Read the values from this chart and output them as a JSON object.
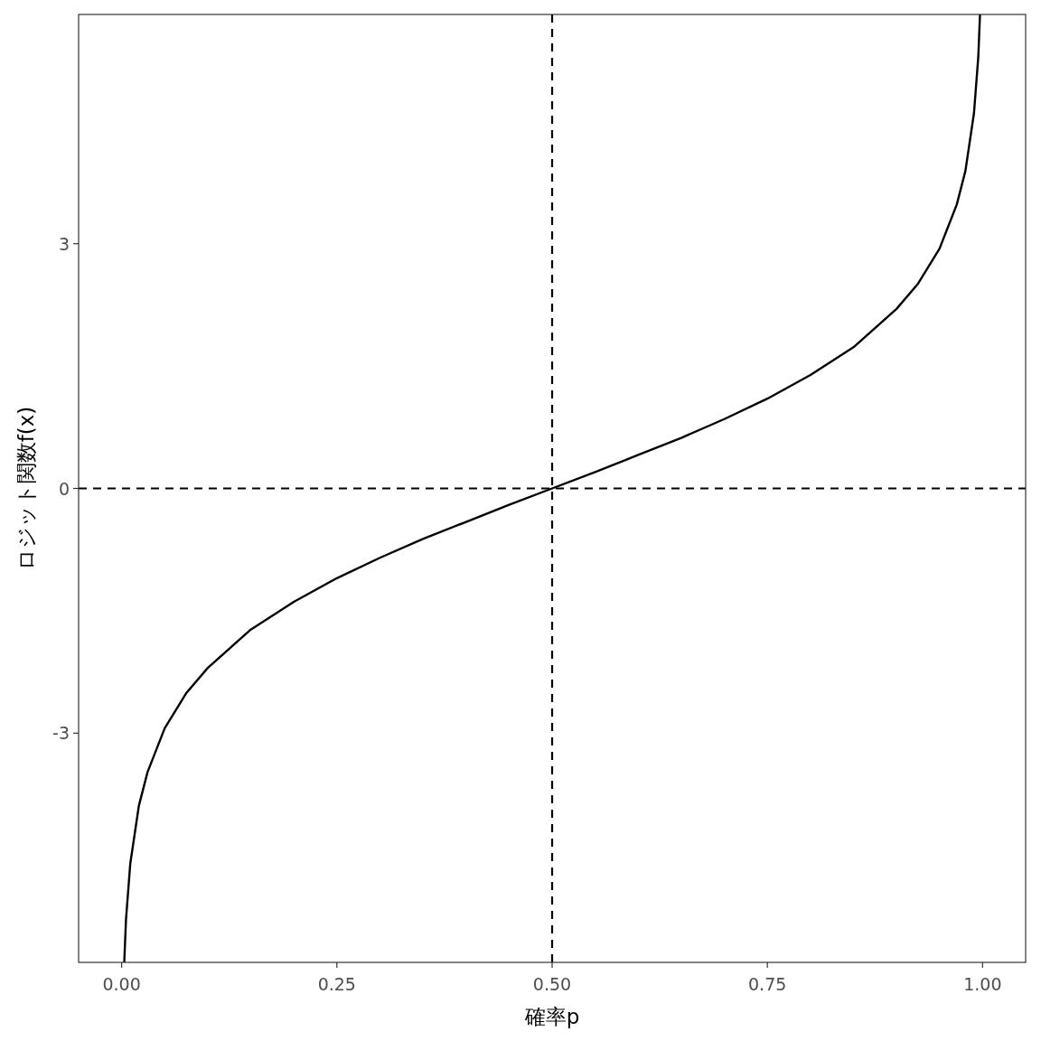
{
  "chart_data": {
    "type": "line",
    "xlabel": "確率p",
    "ylabel": "ロジット関数f(x)",
    "xlim": [
      -0.05,
      1.05
    ],
    "ylim": [
      -5.81,
      5.81
    ],
    "xticks": [
      {
        "value": 0,
        "label": "0.00"
      },
      {
        "value": 0.25,
        "label": "0.25"
      },
      {
        "value": 0.5,
        "label": "0.50"
      },
      {
        "value": 0.75,
        "label": "0.75"
      },
      {
        "value": 1,
        "label": "1.00"
      }
    ],
    "yticks": [
      {
        "value": -3,
        "label": "-3"
      },
      {
        "value": 0,
        "label": "0"
      },
      {
        "value": 3,
        "label": "3"
      }
    ],
    "grid": false,
    "line_style": "solid",
    "series": [
      {
        "color": "#000000",
        "x": [
          0.003,
          0.005,
          0.01,
          0.02,
          0.03,
          0.05,
          0.075,
          0.1,
          0.15,
          0.2,
          0.25,
          0.3,
          0.35,
          0.4,
          0.45,
          0.5,
          0.55,
          0.6,
          0.65,
          0.7,
          0.75,
          0.8,
          0.85,
          0.9,
          0.925,
          0.95,
          0.97,
          0.98,
          0.99,
          0.995,
          0.997
        ],
        "values": [
          -5.81,
          -5.29,
          -4.6,
          -3.89,
          -3.48,
          -2.94,
          -2.51,
          -2.2,
          -1.73,
          -1.39,
          -1.1,
          -0.85,
          -0.62,
          -0.41,
          -0.2,
          0,
          0.2,
          0.41,
          0.62,
          0.85,
          1.1,
          1.39,
          1.73,
          2.2,
          2.51,
          2.94,
          3.48,
          3.89,
          4.6,
          5.29,
          5.81
        ]
      }
    ],
    "ref_lines": [
      {
        "axis": "x",
        "value": 0.5,
        "color": "#000000",
        "line_style": "dashed"
      },
      {
        "axis": "y",
        "value": 0,
        "color": "#000000",
        "line_style": "dashed"
      }
    ]
  }
}
